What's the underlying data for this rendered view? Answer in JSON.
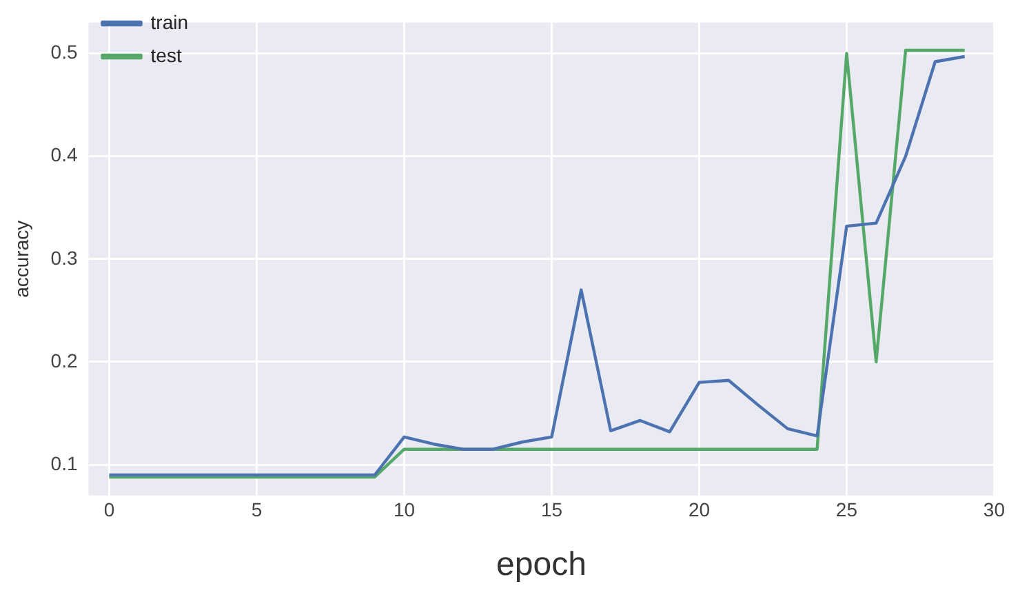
{
  "chart_data": {
    "type": "line",
    "xlabel": "epoch",
    "ylabel": "accuracy",
    "x": [
      0,
      1,
      2,
      3,
      4,
      5,
      6,
      7,
      8,
      9,
      10,
      11,
      12,
      13,
      14,
      15,
      16,
      17,
      18,
      19,
      20,
      21,
      22,
      23,
      24,
      25,
      26,
      27,
      28,
      29
    ],
    "series": [
      {
        "name": "train",
        "color": "#4c72b0",
        "values": [
          0.09,
          0.09,
          0.09,
          0.09,
          0.09,
          0.09,
          0.09,
          0.09,
          0.09,
          0.09,
          0.127,
          0.12,
          0.115,
          0.115,
          0.122,
          0.127,
          0.27,
          0.133,
          0.143,
          0.132,
          0.18,
          0.182,
          0.158,
          0.135,
          0.128,
          0.332,
          0.335,
          0.4,
          0.492,
          0.497
        ]
      },
      {
        "name": "test",
        "color": "#55a868",
        "values": [
          0.088,
          0.088,
          0.088,
          0.088,
          0.088,
          0.088,
          0.088,
          0.088,
          0.088,
          0.088,
          0.115,
          0.115,
          0.115,
          0.115,
          0.115,
          0.115,
          0.115,
          0.115,
          0.115,
          0.115,
          0.115,
          0.115,
          0.115,
          0.115,
          0.115,
          0.5,
          0.2,
          0.503,
          0.503,
          0.503
        ]
      }
    ],
    "xlim": [
      -0.7,
      30
    ],
    "xticks": [
      0,
      5,
      10,
      15,
      20,
      25,
      30
    ],
    "ylim": [
      0.07,
      0.53
    ],
    "yticks": [
      0.1,
      0.2,
      0.3,
      0.4,
      0.5
    ],
    "grid": true,
    "legend": "top left",
    "marker": "none",
    "line_style": "solid"
  }
}
